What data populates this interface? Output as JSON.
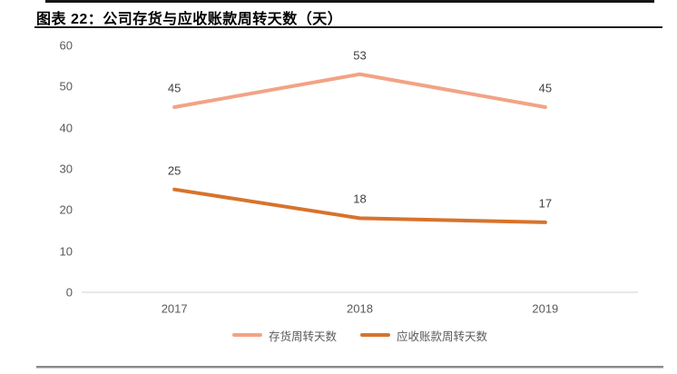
{
  "header": {
    "title": "图表 22：公司存货与应收账款周转天数（天）"
  },
  "chart_data": {
    "type": "line",
    "title": "图表 22：公司存货与应收账款周转天数（天）",
    "categories": [
      "2017",
      "2018",
      "2019"
    ],
    "series": [
      {
        "name": "存货周转天数",
        "values": [
          45,
          53,
          45
        ],
        "color": "#F2A385"
      },
      {
        "name": "应收账款周转天数",
        "values": [
          25,
          18,
          17
        ],
        "color": "#D7732D"
      }
    ],
    "xlabel": "",
    "ylabel": "",
    "ylim": [
      0,
      60
    ],
    "yticks": [
      0,
      10,
      20,
      30,
      40,
      50,
      60
    ],
    "grid": false,
    "data_labels": true,
    "legend_position": "bottom"
  },
  "colors": {
    "axis_text": "#595959",
    "data_label_text": "#404040",
    "axis_line": "#D9D9D9",
    "title_text": "#000000",
    "top_rule": "#141414",
    "bottom_rule": "#8A8A8A"
  }
}
